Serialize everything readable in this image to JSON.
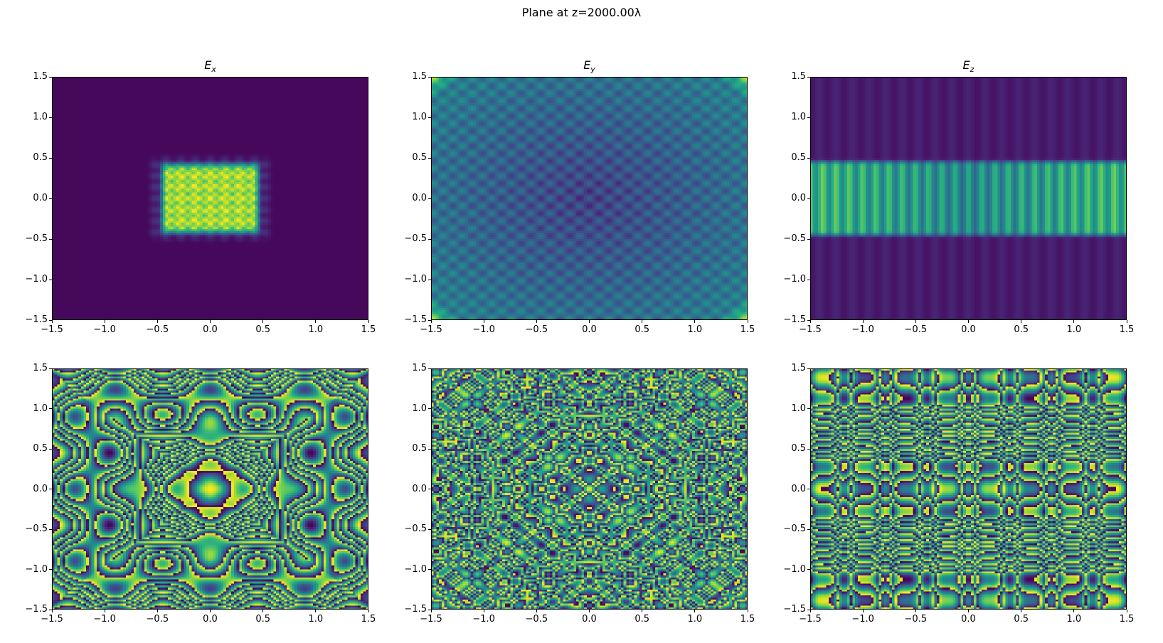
{
  "figure": {
    "title": "Plane at z=2000.00λ"
  },
  "chart_data": [
    {
      "type": "heatmap",
      "id": "ex-amp",
      "row": 0,
      "col": 0,
      "title_var": "E",
      "title_sub": "x",
      "colormap": "viridis",
      "x_range": [
        -1.5,
        1.5
      ],
      "y_range": [
        -1.5,
        1.5
      ],
      "x_ticks": [
        "−1.5",
        "−1.0",
        "−0.5",
        "0.0",
        "0.5",
        "1.0",
        "1.5"
      ],
      "y_ticks": [
        "−1.5",
        "−1.0",
        "−0.5",
        "0.0",
        "0.5",
        "1.0",
        "1.5"
      ]
    },
    {
      "type": "heatmap",
      "id": "ey-amp",
      "row": 0,
      "col": 1,
      "title_var": "E",
      "title_sub": "y",
      "colormap": "viridis",
      "x_range": [
        -1.5,
        1.5
      ],
      "y_range": [
        -1.5,
        1.5
      ],
      "x_ticks": [
        "−1.5",
        "−1.0",
        "−0.5",
        "0.0",
        "0.5",
        "1.0",
        "1.5"
      ],
      "y_ticks": [
        "−1.5",
        "−1.0",
        "−0.5",
        "0.0",
        "0.5",
        "1.0",
        "1.5"
      ]
    },
    {
      "type": "heatmap",
      "id": "ez-amp",
      "row": 0,
      "col": 2,
      "title_var": "E",
      "title_sub": "z",
      "colormap": "viridis",
      "x_range": [
        -1.5,
        1.5
      ],
      "y_range": [
        -1.5,
        1.5
      ],
      "x_ticks": [
        "−1.5",
        "−1.0",
        "−0.5",
        "0.0",
        "0.5",
        "1.0",
        "1.5"
      ],
      "y_ticks": [
        "−1.5",
        "−1.0",
        "−0.5",
        "0.0",
        "0.5",
        "1.0",
        "1.5"
      ]
    },
    {
      "type": "heatmap",
      "id": "ex-phase",
      "row": 1,
      "col": 0,
      "title_var": "",
      "title_sub": "",
      "colormap": "viridis",
      "x_range": [
        -1.5,
        1.5
      ],
      "y_range": [
        -1.5,
        1.5
      ],
      "x_ticks": [
        "−1.5",
        "−1.0",
        "−0.5",
        "0.0",
        "0.5",
        "1.0",
        "1.5"
      ],
      "y_ticks": [
        "−1.5",
        "−1.0",
        "−0.5",
        "0.0",
        "0.5",
        "1.0",
        "1.5"
      ]
    },
    {
      "type": "heatmap",
      "id": "ey-phase",
      "row": 1,
      "col": 1,
      "title_var": "",
      "title_sub": "",
      "colormap": "viridis",
      "x_range": [
        -1.5,
        1.5
      ],
      "y_range": [
        -1.5,
        1.5
      ],
      "x_ticks": [
        "−1.5",
        "−1.0",
        "−0.5",
        "0.0",
        "0.5",
        "1.0",
        "1.5"
      ],
      "y_ticks": [
        "−1.5",
        "−1.0",
        "−0.5",
        "0.0",
        "0.5",
        "1.0",
        "1.5"
      ]
    },
    {
      "type": "heatmap",
      "id": "ez-phase",
      "row": 1,
      "col": 2,
      "title_var": "",
      "title_sub": "",
      "colormap": "viridis",
      "x_range": [
        -1.5,
        1.5
      ],
      "y_range": [
        -1.5,
        1.5
      ],
      "x_ticks": [
        "−1.5",
        "−1.0",
        "−0.5",
        "0.0",
        "0.5",
        "1.0",
        "1.5"
      ],
      "y_ticks": [
        "−1.5",
        "−1.0",
        "−0.5",
        "0.0",
        "0.5",
        "1.0",
        "1.5"
      ]
    }
  ]
}
